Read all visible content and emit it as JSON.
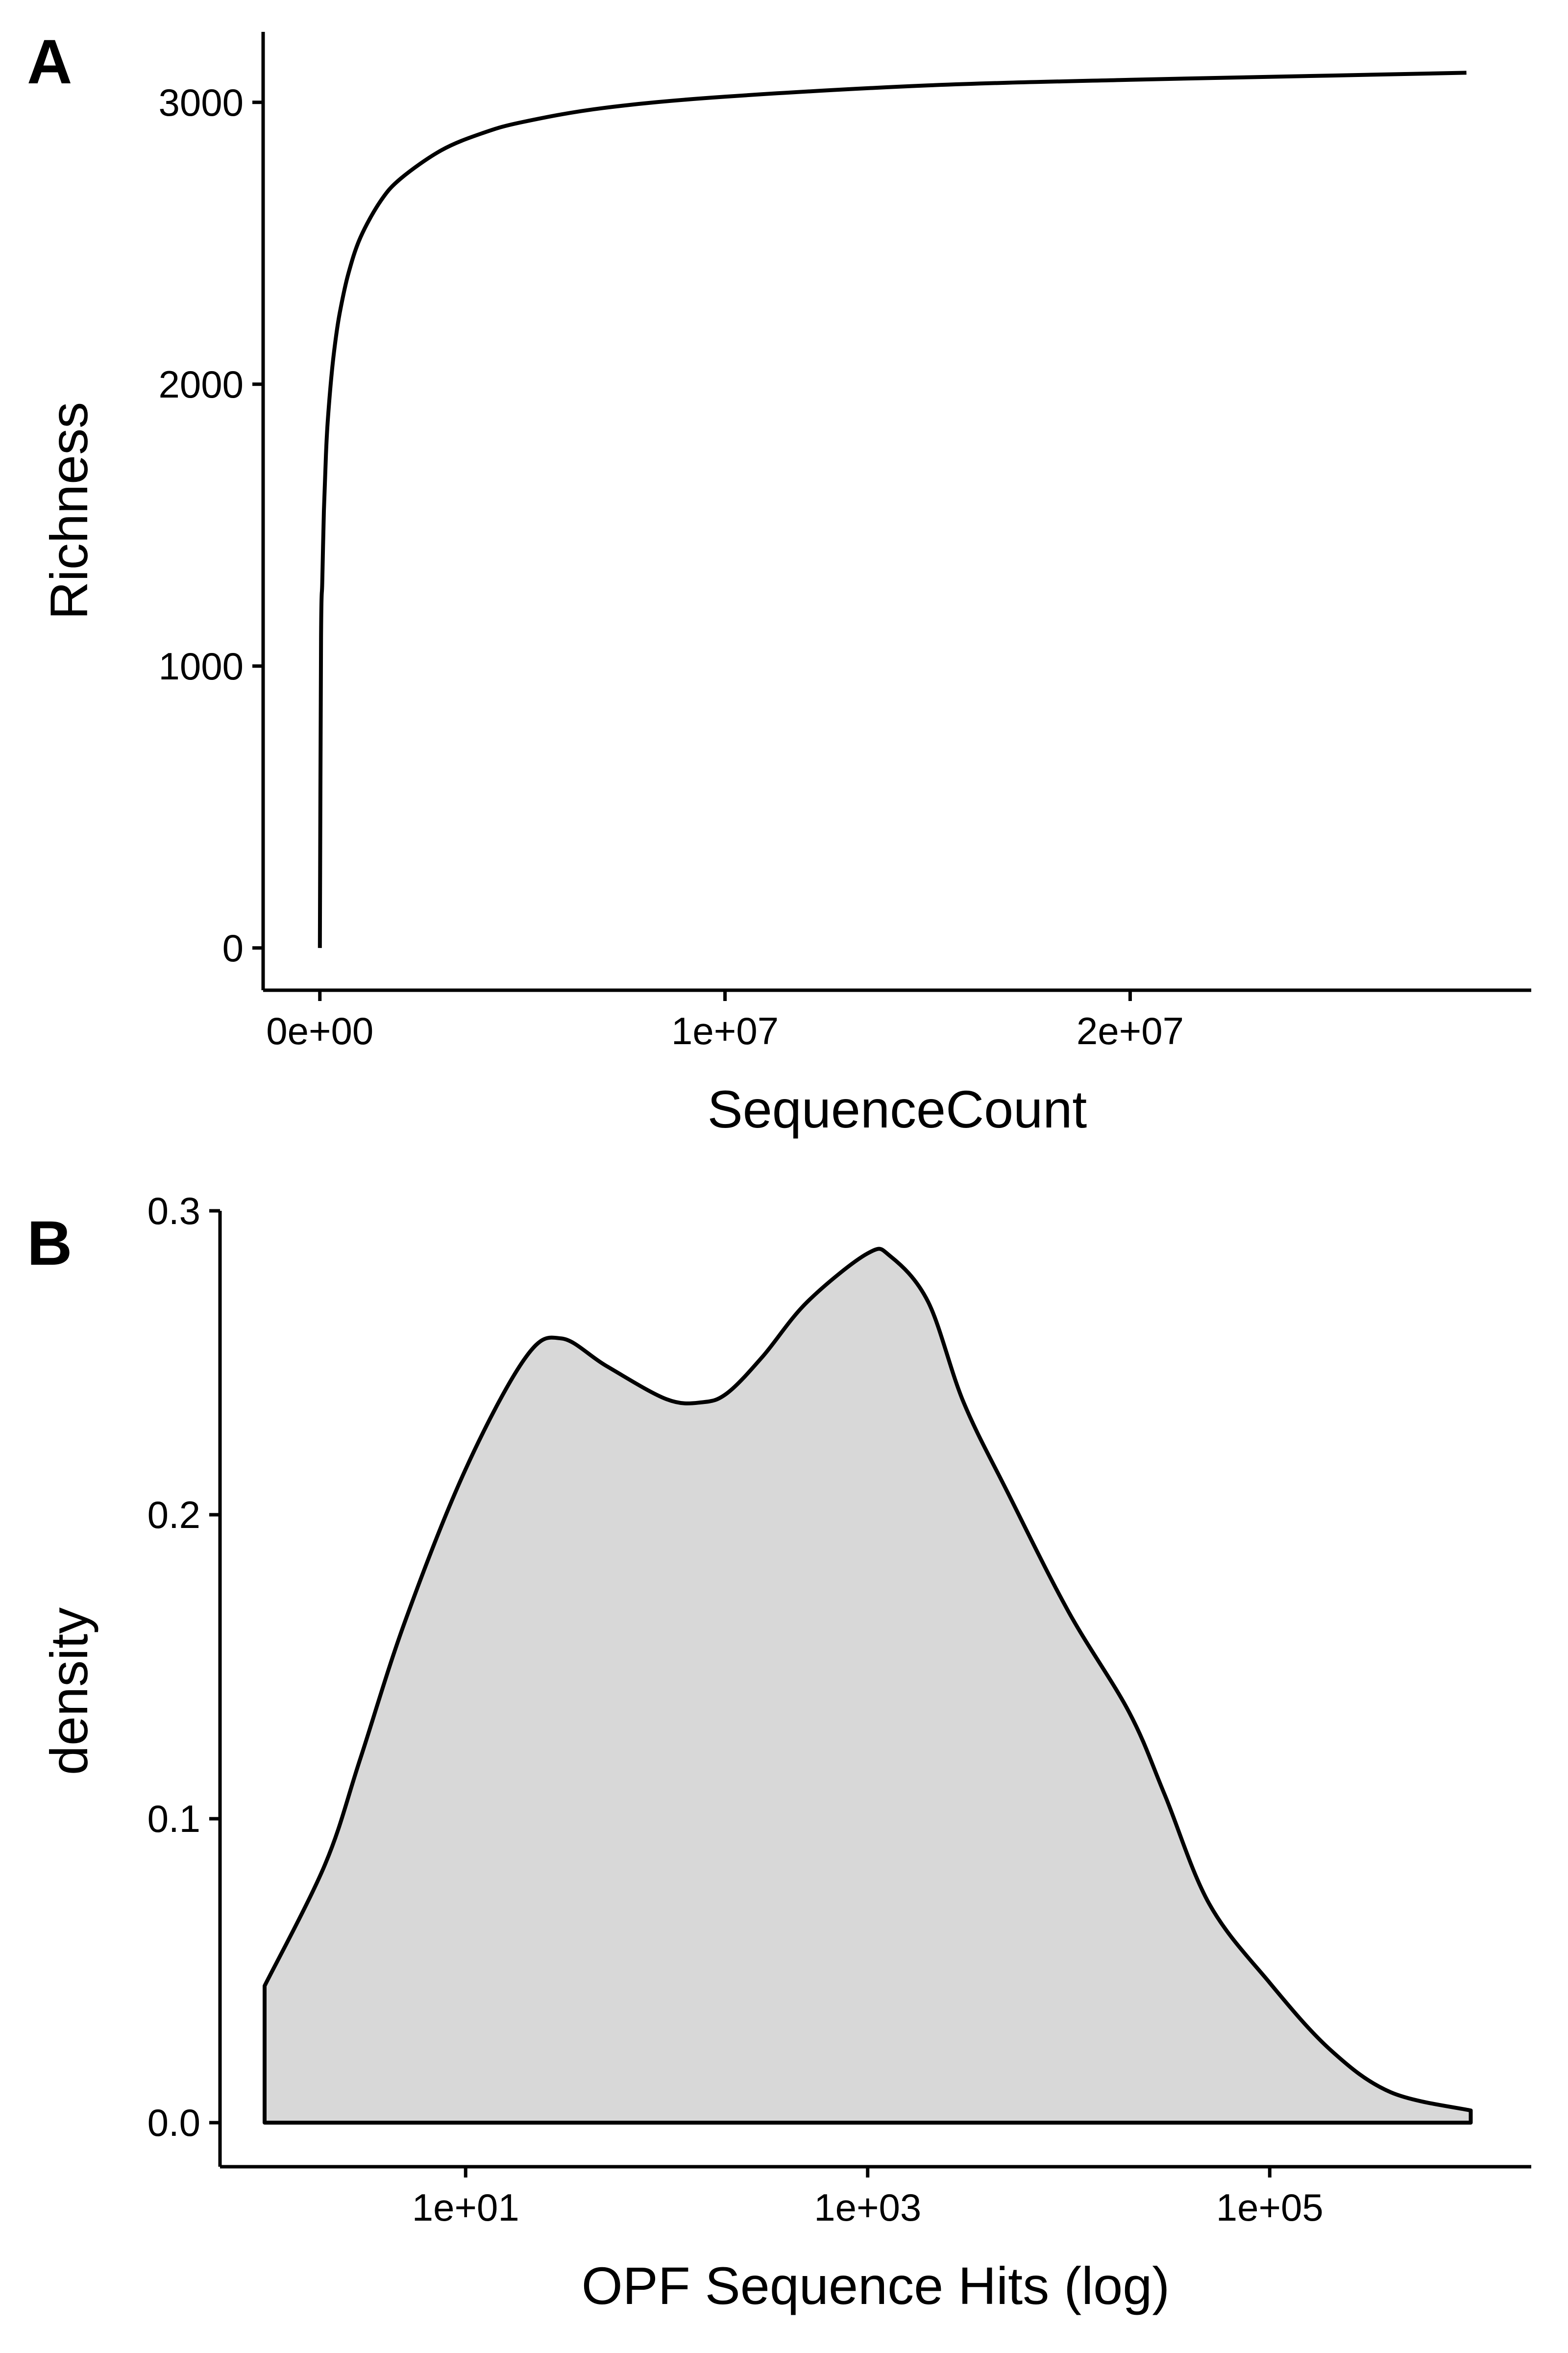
{
  "chart_data": [
    {
      "panel": "A",
      "type": "line",
      "xlabel": "SequenceCount",
      "ylabel": "Richness",
      "xlim": [
        -1400000,
        29900000
      ],
      "ylim": [
        -150,
        3250
      ],
      "x_ticks": [
        0,
        10000000,
        20000000
      ],
      "x_tick_labels": [
        "0e+00",
        "1e+07",
        "2e+07"
      ],
      "y_ticks": [
        0,
        1000,
        2000,
        3000
      ],
      "y_tick_labels": [
        "0",
        "1000",
        "2000",
        "3000"
      ],
      "grid": false,
      "series": [
        {
          "x": [
            0,
            30000,
            60000,
            100000,
            150000,
            200000,
            300000,
            400000,
            500000,
            700000,
            1000000,
            1500000,
            2000000,
            3000000,
            4000000,
            5000000,
            7000000,
            10000000,
            15000000,
            20000000,
            25000000,
            28300000
          ],
          "y": [
            0,
            1100,
            1300,
            1550,
            1750,
            1880,
            2050,
            2170,
            2260,
            2390,
            2520,
            2650,
            2730,
            2830,
            2890,
            2930,
            2980,
            3020,
            3060,
            3080,
            3095,
            3105
          ]
        }
      ],
      "line_color": "#000000"
    },
    {
      "panel": "B",
      "type": "area",
      "xlabel": "OPF Sequence Hits (log)",
      "ylabel": "density",
      "x_scale": "log10",
      "xlim": [
        0.6,
        2000000
      ],
      "ylim": [
        -0.0145,
        0.3
      ],
      "x_ticks": [
        10,
        1000,
        100000
      ],
      "x_tick_labels": [
        "1e+01",
        "1e+03",
        "1e+05"
      ],
      "y_ticks": [
        0,
        0.1,
        0.2,
        0.3
      ],
      "y_tick_labels": [
        "0.0",
        "0.1",
        "0.2",
        "0.3"
      ],
      "grid": false,
      "series": [
        {
          "x": [
            1,
            2,
            3,
            5,
            10,
            20,
            30,
            50,
            100,
            150,
            200,
            300,
            500,
            1000,
            1300,
            2000,
            3000,
            5000,
            10000,
            20000,
            30000,
            50000,
            100000,
            200000,
            400000,
            1000000
          ],
          "y": [
            0.045,
            0.085,
            0.12,
            0.165,
            0.215,
            0.252,
            0.258,
            0.249,
            0.238,
            0.237,
            0.24,
            0.252,
            0.27,
            0.286,
            0.285,
            0.27,
            0.237,
            0.207,
            0.168,
            0.135,
            0.108,
            0.072,
            0.046,
            0.024,
            0.01,
            0.004
          ]
        }
      ],
      "fill_color": "#d8d8d8",
      "line_color": "#000000"
    }
  ]
}
